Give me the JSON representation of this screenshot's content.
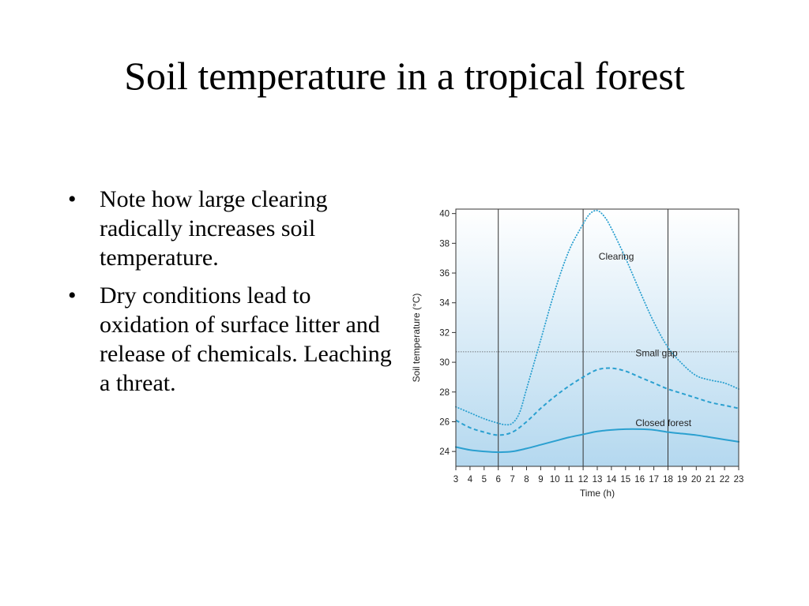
{
  "slide": {
    "title": "Soil temperature in a tropical forest",
    "bullets": [
      "Note how large clearing radically increases soil temperature.",
      "Dry conditions lead to oxidation of surface litter and release of chemicals. Leaching a threat."
    ]
  },
  "chart_data": {
    "type": "line",
    "title": "",
    "xlabel": "Time (h)",
    "ylabel": "Soil temperature (°C)",
    "xlim": [
      3,
      23
    ],
    "ylim": [
      23,
      40.3
    ],
    "x_ticks": [
      3,
      4,
      5,
      6,
      7,
      8,
      9,
      10,
      11,
      12,
      13,
      14,
      15,
      16,
      17,
      18,
      19,
      20,
      21,
      22,
      23
    ],
    "y_ticks": [
      24,
      26,
      28,
      30,
      32,
      34,
      36,
      38,
      40
    ],
    "vertical_gridlines": [
      6,
      12,
      18
    ],
    "horizontal_reference": 30.7,
    "grid": false,
    "legend": "inline labels",
    "series": [
      {
        "name": "Clearing",
        "style": "dotted",
        "color": "#2ba0d0",
        "x": [
          3,
          4,
          5,
          6,
          6.5,
          7,
          7.5,
          8,
          9,
          10,
          11,
          12,
          12.5,
          13,
          13.5,
          14,
          15,
          16,
          17,
          18,
          19,
          20,
          21,
          22,
          23
        ],
        "y": [
          27.0,
          26.6,
          26.2,
          25.9,
          25.8,
          25.9,
          26.6,
          28.2,
          31.5,
          34.8,
          37.5,
          39.3,
          40.0,
          40.2,
          39.8,
          39.0,
          37.0,
          34.8,
          32.7,
          31.0,
          29.9,
          29.1,
          28.8,
          28.6,
          28.2
        ],
        "label_x": 13.1,
        "label_y": 36.9
      },
      {
        "name": "Small gap",
        "style": "dashed",
        "color": "#2ba0d0",
        "x": [
          3,
          4,
          5,
          6,
          7,
          8,
          9,
          10,
          11,
          12,
          13,
          14,
          15,
          16,
          17,
          18,
          19,
          20,
          21,
          22,
          23
        ],
        "y": [
          26.1,
          25.6,
          25.3,
          25.1,
          25.3,
          26.0,
          26.9,
          27.7,
          28.4,
          29.0,
          29.5,
          29.6,
          29.4,
          29.0,
          28.6,
          28.2,
          27.9,
          27.6,
          27.3,
          27.1,
          26.9
        ],
        "label_x": 15.7,
        "label_y": 30.4
      },
      {
        "name": "Closed forest",
        "style": "solid",
        "color": "#2ba0d0",
        "x": [
          3,
          4,
          5,
          6,
          7,
          8,
          9,
          10,
          11,
          12,
          13,
          14,
          15,
          16,
          17,
          18,
          19,
          20,
          21,
          22,
          23
        ],
        "y": [
          24.3,
          24.1,
          24.0,
          23.95,
          24.0,
          24.2,
          24.45,
          24.7,
          24.95,
          25.15,
          25.35,
          25.45,
          25.5,
          25.5,
          25.45,
          25.3,
          25.2,
          25.1,
          24.95,
          24.8,
          24.65
        ],
        "label_x": 15.7,
        "label_y": 25.7
      }
    ],
    "colors": {
      "background_top": "#ffffff",
      "background_bottom": "#b4d8ef",
      "frame": "#333333"
    }
  }
}
